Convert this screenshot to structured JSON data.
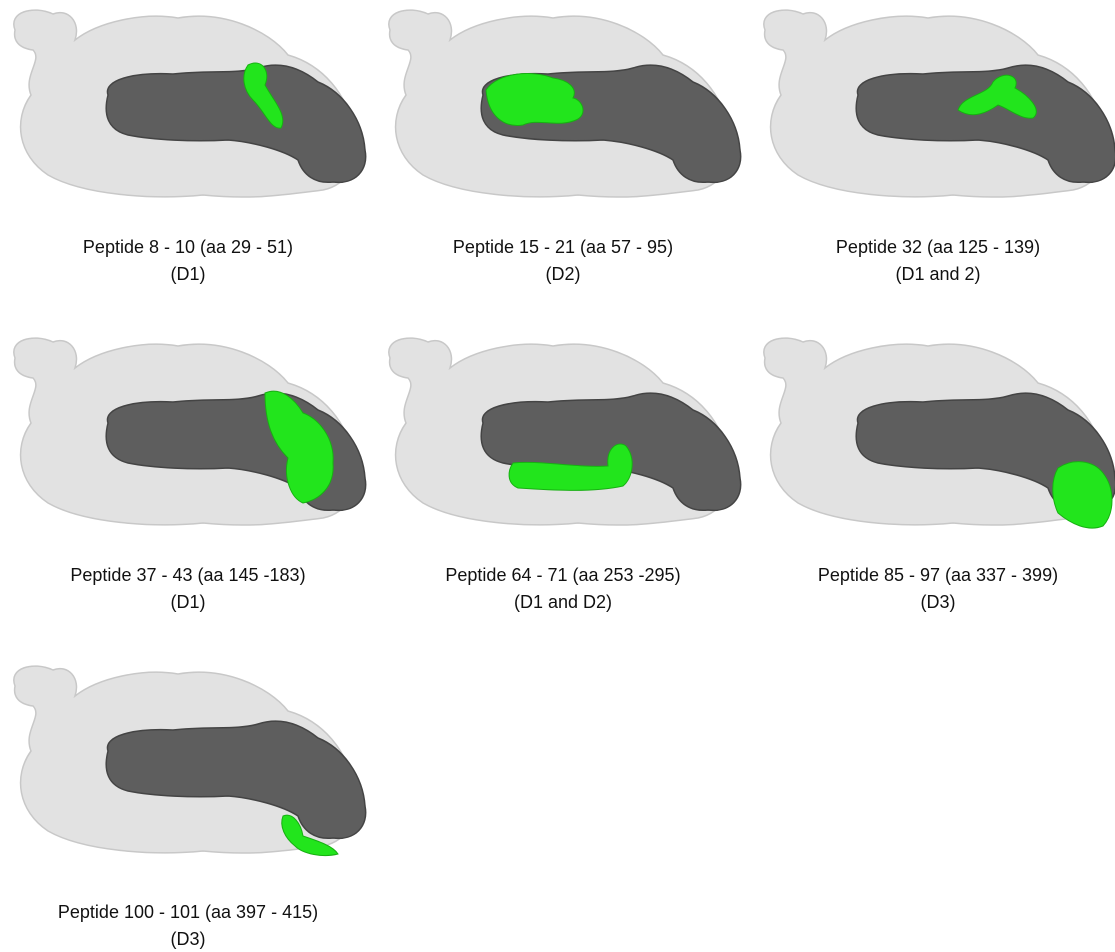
{
  "panels": [
    {
      "caption": [
        "Peptide 8 - 10 (aa 29 - 51)",
        "(D1)"
      ]
    },
    {
      "caption": [
        "Peptide 15 - 21 (aa 57 - 95)",
        "(D2)"
      ]
    },
    {
      "caption": [
        "Peptide 32 (aa 125 - 139)",
        "(D1 and 2)"
      ]
    },
    {
      "caption": [
        "Peptide 37 - 43 (aa 145 -183)",
        "(D1)"
      ]
    },
    {
      "caption": [
        "Peptide 64 - 71 (aa 253 -295)",
        "(D1 and D2)"
      ]
    },
    {
      "caption": [
        "Peptide 85 - 97 (aa 337 - 399)",
        "(D3)"
      ]
    },
    {
      "caption": [
        "Peptide 100 - 101 (aa 397 - 415)",
        "(D3)"
      ]
    }
  ]
}
